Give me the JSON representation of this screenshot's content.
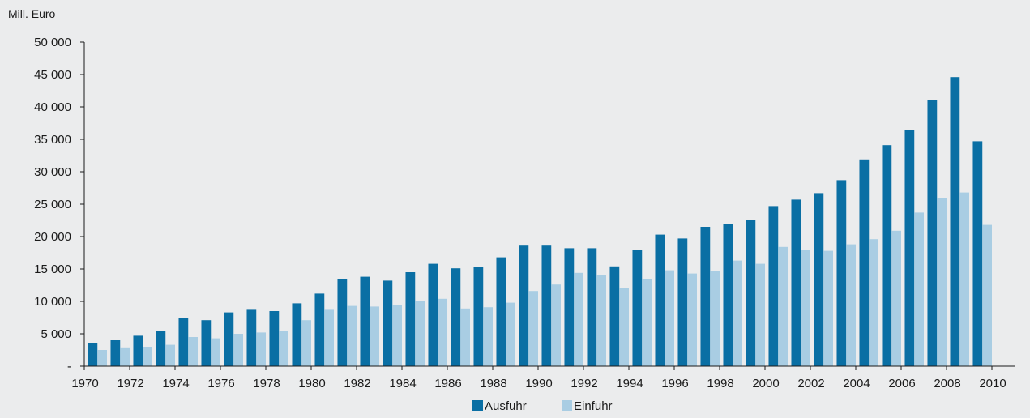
{
  "chart_data": {
    "type": "bar",
    "unit_label": "Mill. Euro",
    "categories": [
      "1970",
      "1971",
      "1972",
      "1973",
      "1974",
      "1975",
      "1976",
      "1977",
      "1978",
      "1979",
      "1980",
      "1981",
      "1982",
      "1983",
      "1984",
      "1985",
      "1986",
      "1987",
      "1988",
      "1989",
      "1990",
      "1991",
      "1992",
      "1993",
      "1994",
      "1995",
      "1996",
      "1997",
      "1998",
      "1999",
      "2000",
      "2001",
      "2002",
      "2003",
      "2004",
      "2005",
      "2006",
      "2007",
      "2008",
      "2009"
    ],
    "x_tick_labels": [
      "1970",
      "1972",
      "1974",
      "1976",
      "1978",
      "1980",
      "1982",
      "1984",
      "1986",
      "1988",
      "1990",
      "1992",
      "1994",
      "1996",
      "1998",
      "2000",
      "2002",
      "2004",
      "2006",
      "2008",
      "2010"
    ],
    "y_tick_labels": [
      "-",
      "5 000",
      "10 000",
      "15 000",
      "20 000",
      "25 000",
      "30 000",
      "35 000",
      "40 000",
      "45 000",
      "50 000"
    ],
    "ylim": [
      0,
      50000
    ],
    "grid": false,
    "legend_position": "bottom",
    "series": [
      {
        "name": "Ausfuhr",
        "color": "#0a6fa4",
        "values": [
          3600,
          4000,
          4700,
          5500,
          7400,
          7100,
          8300,
          8700,
          8500,
          9700,
          11200,
          13500,
          13800,
          13200,
          14500,
          15800,
          15100,
          15300,
          16800,
          18600,
          18600,
          18200,
          18200,
          15400,
          18000,
          20300,
          19700,
          21500,
          22000,
          22600,
          24700,
          25700,
          26700,
          28700,
          31900,
          34100,
          36500,
          41000,
          44600,
          34700
        ]
      },
      {
        "name": "Einfuhr",
        "color": "#a9cde3",
        "values": [
          2500,
          2900,
          3000,
          3300,
          4500,
          4300,
          5000,
          5200,
          5400,
          7100,
          8700,
          9300,
          9200,
          9400,
          10000,
          10400,
          8900,
          9100,
          9800,
          11600,
          12600,
          14400,
          14000,
          12100,
          13400,
          14800,
          14300,
          14700,
          16300,
          15800,
          18400,
          17900,
          17800,
          18800,
          19600,
          20900,
          23700,
          25900,
          26800,
          21800
        ]
      }
    ]
  }
}
